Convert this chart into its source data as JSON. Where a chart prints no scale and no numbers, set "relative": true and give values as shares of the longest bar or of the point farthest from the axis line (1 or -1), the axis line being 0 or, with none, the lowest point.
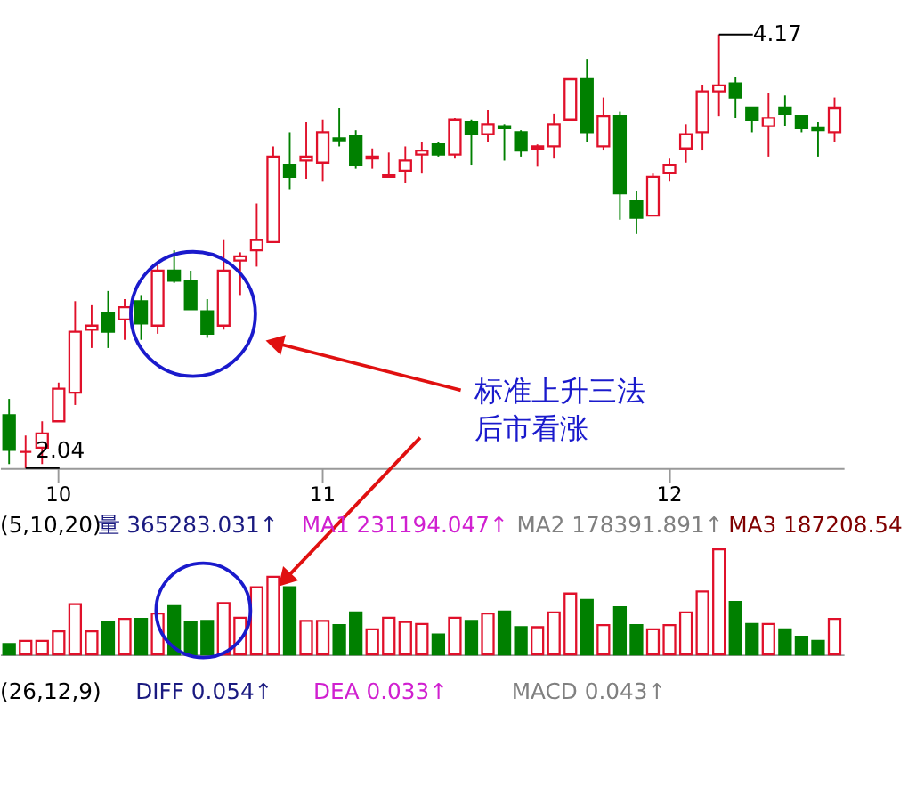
{
  "chart_data": [
    {
      "type": "candlestick",
      "categories": [
        null,
        null,
        null,
        "10",
        null,
        null,
        null,
        null,
        null,
        null,
        null,
        null,
        null,
        null,
        null,
        null,
        null,
        null,
        null,
        "11",
        null,
        null,
        null,
        null,
        null,
        null,
        null,
        null,
        null,
        null,
        null,
        null,
        null,
        null,
        null,
        null,
        null,
        null,
        null,
        null,
        "12",
        null,
        null,
        null,
        null,
        null,
        null,
        null,
        null,
        null,
        null
      ],
      "ohlc": [
        [
          2.3,
          2.38,
          2.06,
          2.13
        ],
        [
          2.12,
          2.2,
          2.04,
          2.12
        ],
        [
          2.14,
          2.27,
          2.06,
          2.21
        ],
        [
          2.27,
          2.46,
          2.27,
          2.43
        ],
        [
          2.41,
          2.86,
          2.35,
          2.71
        ],
        [
          2.72,
          2.84,
          2.63,
          2.74
        ],
        [
          2.8,
          2.91,
          2.63,
          2.71
        ],
        [
          2.77,
          2.87,
          2.67,
          2.83
        ],
        [
          2.86,
          2.89,
          2.67,
          2.75
        ],
        [
          2.74,
          3.05,
          2.7,
          3.01
        ],
        [
          3.01,
          3.11,
          2.95,
          2.96
        ],
        [
          2.96,
          3.01,
          2.82,
          2.82
        ],
        [
          2.81,
          2.87,
          2.68,
          2.7
        ],
        [
          2.74,
          3.16,
          2.72,
          3.01
        ],
        [
          3.06,
          3.1,
          2.89,
          3.08
        ],
        [
          3.11,
          3.34,
          3.03,
          3.16
        ],
        [
          3.15,
          3.62,
          3.15,
          3.57
        ],
        [
          3.53,
          3.69,
          3.41,
          3.47
        ],
        [
          3.55,
          3.74,
          3.46,
          3.57
        ],
        [
          3.54,
          3.75,
          3.45,
          3.69
        ],
        [
          3.66,
          3.81,
          3.62,
          3.65
        ],
        [
          3.67,
          3.7,
          3.51,
          3.53
        ],
        [
          3.56,
          3.61,
          3.51,
          3.57
        ],
        [
          3.47,
          3.59,
          3.47,
          3.48
        ],
        [
          3.5,
          3.62,
          3.44,
          3.55
        ],
        [
          3.58,
          3.64,
          3.49,
          3.6
        ],
        [
          3.63,
          3.64,
          3.57,
          3.58
        ],
        [
          3.58,
          3.76,
          3.56,
          3.75
        ],
        [
          3.74,
          3.75,
          3.53,
          3.68
        ],
        [
          3.68,
          3.8,
          3.64,
          3.73
        ],
        [
          3.72,
          3.73,
          3.55,
          3.71
        ],
        [
          3.69,
          3.7,
          3.57,
          3.6
        ],
        [
          3.61,
          3.63,
          3.52,
          3.62
        ],
        [
          3.62,
          3.78,
          3.56,
          3.73
        ],
        [
          3.75,
          3.95,
          3.75,
          3.95
        ],
        [
          3.95,
          4.05,
          3.64,
          3.69
        ],
        [
          3.62,
          3.86,
          3.6,
          3.77
        ],
        [
          3.77,
          3.79,
          3.26,
          3.39
        ],
        [
          3.35,
          3.4,
          3.19,
          3.27
        ],
        [
          3.28,
          3.49,
          3.28,
          3.47
        ],
        [
          3.49,
          3.56,
          3.45,
          3.53
        ],
        [
          3.61,
          3.73,
          3.54,
          3.68
        ],
        [
          3.69,
          3.92,
          3.6,
          3.89
        ],
        [
          3.89,
          4.17,
          3.77,
          3.92
        ],
        [
          3.93,
          3.96,
          3.76,
          3.86
        ],
        [
          3.81,
          3.81,
          3.69,
          3.75
        ],
        [
          3.72,
          3.88,
          3.57,
          3.76
        ],
        [
          3.81,
          3.87,
          3.72,
          3.78
        ],
        [
          3.77,
          3.77,
          3.69,
          3.71
        ],
        [
          3.71,
          3.74,
          3.57,
          3.7
        ],
        [
          3.69,
          3.86,
          3.64,
          3.81
        ]
      ],
      "colors": [
        "#008000",
        "#e0102a",
        "#e0102a",
        "#e0102a",
        "#e0102a",
        "#e0102a",
        "#008000",
        "#e0102a",
        "#008000",
        "#e0102a",
        "#008000",
        "#008000",
        "#008000",
        "#e0102a",
        "#e0102a",
        "#e0102a",
        "#e0102a",
        "#008000",
        "#e0102a",
        "#e0102a",
        "#008000",
        "#008000",
        "#e0102a",
        "#e0102a",
        "#e0102a",
        "#e0102a",
        "#008000",
        "#e0102a",
        "#008000",
        "#e0102a",
        "#008000",
        "#008000",
        "#e0102a",
        "#e0102a",
        "#e0102a",
        "#008000",
        "#e0102a",
        "#008000",
        "#008000",
        "#e0102a",
        "#e0102a",
        "#e0102a",
        "#e0102a",
        "#e0102a",
        "#008000",
        "#008000",
        "#e0102a",
        "#008000",
        "#008000",
        "#008000",
        "#e0102a"
      ],
      "tick_labels": "x",
      "annotations": [
        "4.17",
        "2.04",
        "标准上升三法",
        "后市看涨"
      ]
    },
    {
      "type": "bar",
      "relative": true,
      "tick_labels": false,
      "categories": [
        null,
        null,
        null,
        null,
        null,
        null,
        null,
        null,
        null,
        null,
        null,
        null,
        null,
        null,
        null,
        null,
        null,
        null,
        null,
        null,
        null,
        null,
        null,
        null,
        null,
        null,
        null,
        null,
        null,
        null,
        null,
        null,
        null,
        null,
        null,
        null,
        null,
        null,
        null,
        null,
        null,
        null,
        null,
        null,
        null,
        null,
        null,
        null,
        null,
        null,
        null
      ],
      "values": [
        0.1,
        0.13,
        0.13,
        0.22,
        0.48,
        0.22,
        0.31,
        0.34,
        0.34,
        0.39,
        0.46,
        0.31,
        0.32,
        0.49,
        0.35,
        0.64,
        0.74,
        0.64,
        0.32,
        0.32,
        0.28,
        0.4,
        0.24,
        0.35,
        0.31,
        0.29,
        0.19,
        0.35,
        0.32,
        0.39,
        0.41,
        0.26,
        0.26,
        0.4,
        0.58,
        0.52,
        0.28,
        0.45,
        0.28,
        0.24,
        0.28,
        0.4,
        0.6,
        1,
        0.5,
        0.29,
        0.29,
        0.24,
        0.17,
        0.13,
        0.34
      ],
      "colors": [
        "#008000",
        "#e0102a",
        "#e0102a",
        "#e0102a",
        "#e0102a",
        "#e0102a",
        "#008000",
        "#e0102a",
        "#008000",
        "#e0102a",
        "#008000",
        "#008000",
        "#008000",
        "#e0102a",
        "#e0102a",
        "#e0102a",
        "#e0102a",
        "#008000",
        "#e0102a",
        "#e0102a",
        "#008000",
        "#008000",
        "#e0102a",
        "#e0102a",
        "#e0102a",
        "#e0102a",
        "#008000",
        "#e0102a",
        "#008000",
        "#e0102a",
        "#008000",
        "#008000",
        "#e0102a",
        "#e0102a",
        "#e0102a",
        "#008000",
        "#e0102a",
        "#008000",
        "#008000",
        "#e0102a",
        "#e0102a",
        "#e0102a",
        "#e0102a",
        "#e0102a",
        "#008000",
        "#008000",
        "#e0102a",
        "#008000",
        "#008000",
        "#008000",
        "#e0102a"
      ],
      "annotations": [
        "(5,10,20)",
        "量 365283.031↑",
        "MA1 231194.047↑",
        "MA2 178391.891↑",
        "MA3 187208.54",
        "(26,12,9)",
        "DIFF 0.054↑",
        "DEA 0.033↑",
        "MACD 0.043↑"
      ]
    }
  ]
}
